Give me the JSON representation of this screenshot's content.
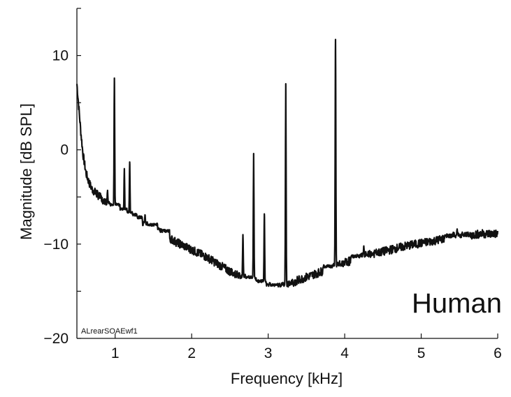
{
  "chart_data": {
    "type": "line",
    "title": "",
    "xlabel": "Frequency [kHz]",
    "ylabel": "Magnitude [dB SPL]",
    "xlim": [
      0.5,
      6
    ],
    "ylim": [
      -20,
      15
    ],
    "xticks": [
      1,
      2,
      3,
      4,
      5,
      6
    ],
    "yticks": [
      -20,
      -10,
      0,
      10
    ],
    "grid": false,
    "legend": "none",
    "line_color": "#111111",
    "annotations": {
      "species": "Human",
      "file_id": "ALrearSOAEwf1"
    },
    "series": [
      {
        "x": [
          0.5,
          0.52,
          0.55,
          0.58,
          0.62,
          0.66,
          0.7,
          0.75,
          0.8,
          0.85,
          0.9,
          0.95,
          1.0,
          1.1,
          1.2,
          1.3,
          1.4,
          1.5,
          1.6,
          1.7,
          1.8,
          2.0,
          2.2,
          2.4,
          2.5,
          2.6,
          2.7,
          2.8,
          2.9,
          3.0,
          3.1,
          3.2,
          3.3,
          3.4,
          3.5,
          3.6,
          3.7,
          3.8,
          3.9,
          4.0,
          4.2,
          4.4,
          4.6,
          4.8,
          5.0,
          5.2,
          5.4,
          5.6,
          5.8,
          6.0
        ],
        "y": [
          7.0,
          5.0,
          2.0,
          -0.5,
          -2.5,
          -3.5,
          -4.2,
          -4.6,
          -5.0,
          -5.4,
          -5.8,
          -6.1,
          -6.3,
          -6.8,
          -7.2,
          -7.6,
          -8.0,
          -8.4,
          -8.8,
          -9.3,
          -9.8,
          -10.6,
          -11.4,
          -12.4,
          -12.9,
          -13.3,
          -13.6,
          -13.9,
          -14.2,
          -14.5,
          -14.6,
          -14.5,
          -14.2,
          -13.8,
          -13.5,
          -13.2,
          -12.9,
          -12.6,
          -12.3,
          -12.0,
          -11.4,
          -11.0,
          -10.6,
          -10.2,
          -9.9,
          -9.6,
          -9.2,
          -9.1,
          -8.9,
          -8.9
        ],
        "peaks": [
          {
            "x": 0.9,
            "y": -4.4
          },
          {
            "x": 0.99,
            "y": 7.6
          },
          {
            "x": 1.06,
            "y": -6.0
          },
          {
            "x": 1.12,
            "y": -2.0
          },
          {
            "x": 1.19,
            "y": -1.3
          },
          {
            "x": 1.39,
            "y": -6.9
          },
          {
            "x": 1.55,
            "y": -7.8
          },
          {
            "x": 1.73,
            "y": -9.6
          },
          {
            "x": 2.67,
            "y": -9.0
          },
          {
            "x": 2.81,
            "y": -0.4
          },
          {
            "x": 2.95,
            "y": -6.8
          },
          {
            "x": 3.23,
            "y": 7.0
          },
          {
            "x": 3.88,
            "y": 11.7
          },
          {
            "x": 4.25,
            "y": -10.2
          },
          {
            "x": 5.47,
            "y": -8.4
          }
        ]
      }
    ]
  }
}
